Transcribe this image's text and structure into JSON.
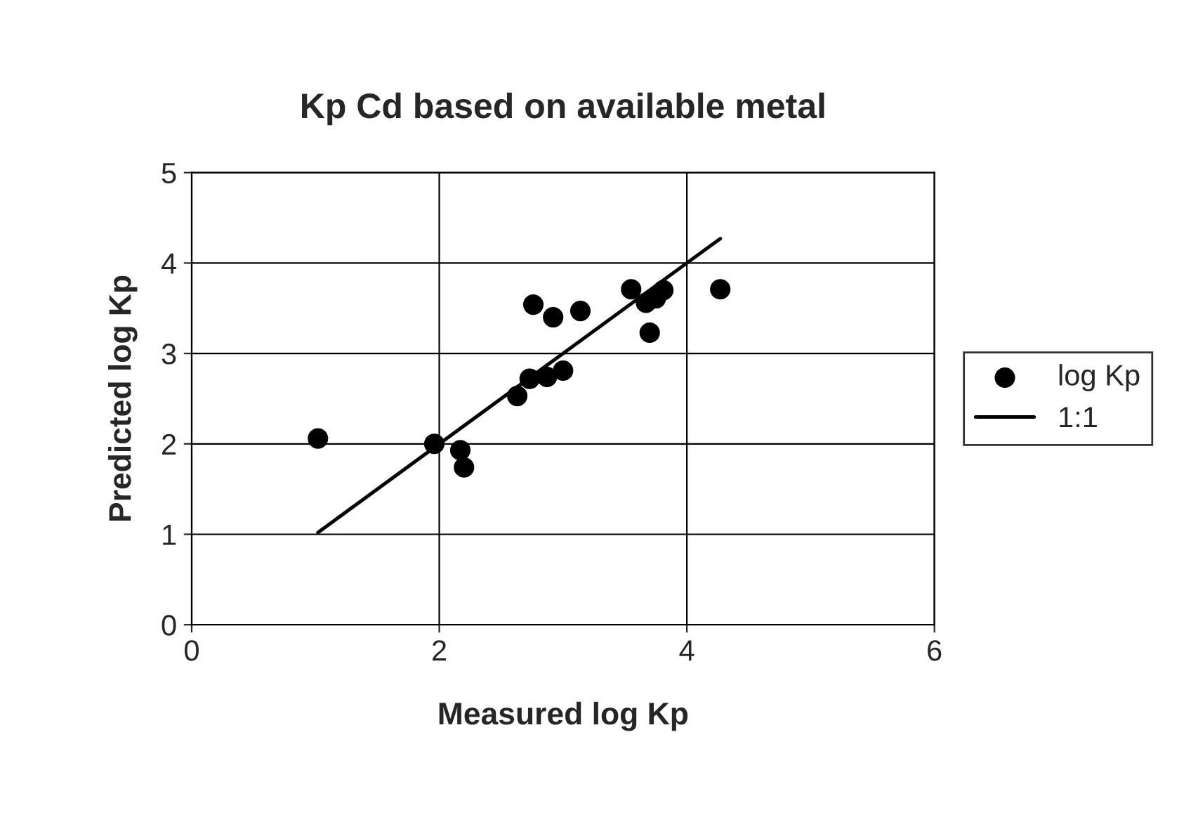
{
  "chart_data": {
    "type": "scatter",
    "title": "Kp Cd based on available metal",
    "xlabel": "Measured log Kp",
    "ylabel": "Predicted log Kp",
    "xlim": [
      0,
      6
    ],
    "xticks": [
      0,
      2,
      4,
      6
    ],
    "ylim": [
      0,
      5
    ],
    "yticks": [
      0,
      1,
      2,
      3,
      4,
      5
    ],
    "grid": true,
    "legend": "right",
    "marker": "circle",
    "series": [
      {
        "name": "log Kp",
        "color": "#000000",
        "x": [
          1.02,
          1.96,
          2.17,
          2.2,
          2.63,
          2.73,
          2.87,
          3.0,
          2.76,
          2.92,
          3.14,
          3.55,
          3.67,
          3.7,
          3.81,
          3.75,
          4.27
        ],
        "values": [
          2.06,
          2.0,
          1.93,
          1.74,
          2.53,
          2.72,
          2.74,
          2.81,
          3.54,
          3.4,
          3.47,
          3.71,
          3.56,
          3.23,
          3.7,
          3.61,
          3.71
        ]
      },
      {
        "name": "1:1",
        "color": "#000000",
        "type": "line",
        "marker": "none",
        "line_style": "solid",
        "x": [
          1.02,
          4.27
        ],
        "values": [
          1.02,
          4.27
        ]
      }
    ]
  }
}
